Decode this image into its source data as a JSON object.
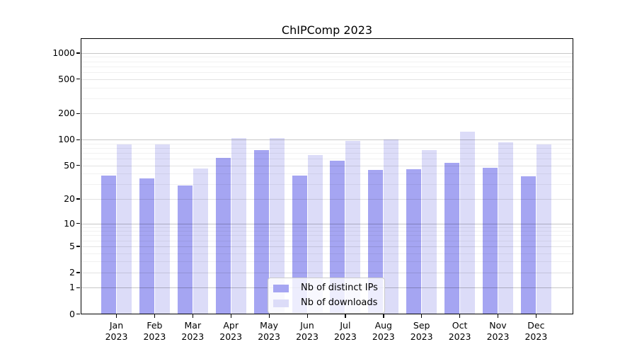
{
  "title": "ChIPComp 2023",
  "colors": {
    "distinct_ips_bar": "#a5a5f2",
    "downloads_bar": "#dcdcf8",
    "grid_major": "#c6c6c6",
    "grid_mid": "#e2e2e2",
    "grid_minor": "#f0f0f0",
    "axis": "#000000",
    "legend_border": "#cccccc"
  },
  "chart_data": {
    "type": "bar",
    "title": "ChIPComp 2023",
    "xlabel": "",
    "ylabel": "",
    "scale": "log1p",
    "grid": "horizontal",
    "legend_position": "bottom-center",
    "year": "2023",
    "categories": [
      "Jan",
      "Feb",
      "Mar",
      "Apr",
      "May",
      "Jun",
      "Jul",
      "Aug",
      "Sep",
      "Oct",
      "Nov",
      "Dec"
    ],
    "series": [
      {
        "name": "Nb of distinct IPs",
        "color": "#a5a5f2",
        "values": [
          38,
          35,
          29,
          61,
          75,
          38,
          57,
          44,
          45,
          54,
          47,
          37
        ]
      },
      {
        "name": "Nb of downloads",
        "color": "#dcdcf8",
        "values": [
          88,
          87,
          46,
          104,
          104,
          66,
          96,
          100,
          75,
          124,
          93,
          87
        ]
      }
    ],
    "y_ticks": [
      0,
      1,
      2,
      5,
      10,
      20,
      50,
      100,
      200,
      500,
      1000
    ],
    "ylim": [
      0,
      1475
    ]
  }
}
